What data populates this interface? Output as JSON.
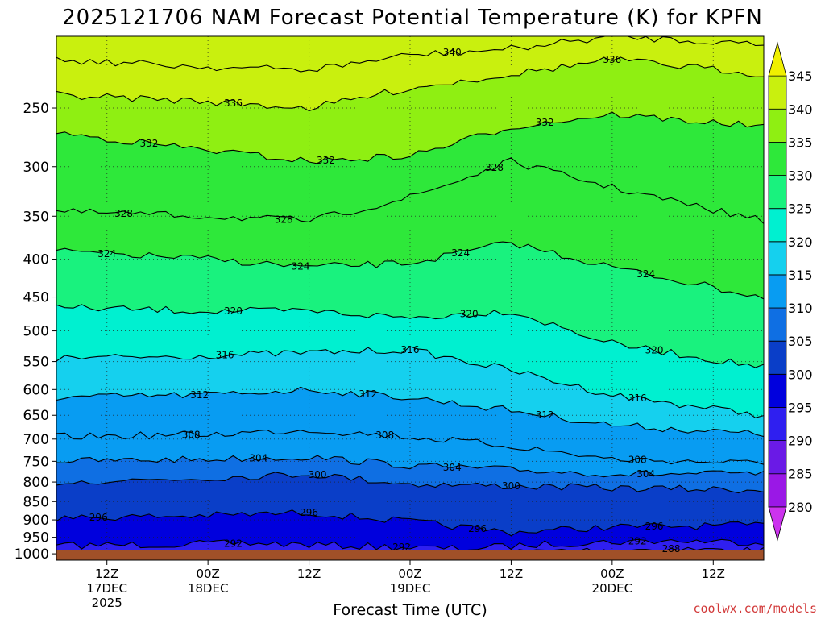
{
  "chart_data": {
    "type": "heatmap",
    "title": "2025121706 NAM Forecast Potential Temperature (K) for KPFN",
    "xlabel": "Forecast Time (UTC)",
    "ylabel": "",
    "credit": "coolwx.com/models",
    "x_ticks": [
      {
        "hour": 6,
        "line1": "12Z",
        "line2": "17DEC",
        "line3": "2025"
      },
      {
        "hour": 18,
        "line1": "00Z",
        "line2": "18DEC",
        "line3": ""
      },
      {
        "hour": 30,
        "line1": "12Z",
        "line2": "",
        "line3": ""
      },
      {
        "hour": 42,
        "line1": "00Z",
        "line2": "19DEC",
        "line3": ""
      },
      {
        "hour": 54,
        "line1": "12Z",
        "line2": "",
        "line3": ""
      },
      {
        "hour": 66,
        "line1": "00Z",
        "line2": "20DEC",
        "line3": ""
      },
      {
        "hour": 78,
        "line1": "12Z",
        "line2": "",
        "line3": ""
      }
    ],
    "x_range_hours": [
      0,
      84
    ],
    "y_axis": "pressure (hPa), log scale, reversed",
    "y_ticks": [
      250,
      300,
      350,
      400,
      450,
      500,
      550,
      600,
      650,
      700,
      750,
      800,
      850,
      900,
      950,
      1000
    ],
    "y_range": [
      200,
      1020
    ],
    "colorbar": {
      "levels": [
        280,
        285,
        290,
        295,
        300,
        305,
        310,
        315,
        320,
        325,
        330,
        335,
        340,
        345
      ],
      "colors": [
        "#cc33ee",
        "#9a18e6",
        "#6a1ae6",
        "#2f1ff0",
        "#0000dd",
        "#0a3ec8",
        "#0f6fe3",
        "#089cf2",
        "#15d0ee",
        "#00f0d0",
        "#19f27e",
        "#2ee83a",
        "#8fef12",
        "#c9f00e",
        "#f0f000"
      ]
    },
    "contours": [
      {
        "value": 288,
        "profile": [
          [
            0,
            1005
          ],
          [
            48,
            1000
          ],
          [
            60,
            990
          ],
          [
            72,
            985
          ],
          [
            84,
            990
          ]
        ],
        "labels": [
          [
            73,
            "288"
          ]
        ]
      },
      {
        "value": 292,
        "profile": [
          [
            0,
            975
          ],
          [
            24,
            968
          ],
          [
            48,
            985
          ],
          [
            60,
            968
          ],
          [
            72,
            960
          ],
          [
            84,
            965
          ]
        ],
        "labels": [
          [
            21,
            "292"
          ],
          [
            41,
            "292"
          ],
          [
            69,
            "292"
          ]
        ]
      },
      {
        "value": 296,
        "profile": [
          [
            0,
            895
          ],
          [
            18,
            888
          ],
          [
            30,
            880
          ],
          [
            42,
            905
          ],
          [
            54,
            935
          ],
          [
            66,
            920
          ],
          [
            84,
            915
          ]
        ],
        "labels": [
          [
            5,
            "296"
          ],
          [
            30,
            "296"
          ],
          [
            50,
            "296"
          ],
          [
            71,
            "296"
          ]
        ]
      },
      {
        "value": 300,
        "profile": [
          [
            0,
            800
          ],
          [
            18,
            790
          ],
          [
            30,
            780
          ],
          [
            42,
            805
          ],
          [
            54,
            810
          ],
          [
            66,
            815
          ],
          [
            84,
            820
          ]
        ],
        "labels": [
          [
            31,
            "300"
          ],
          [
            54,
            "300"
          ]
        ]
      },
      {
        "value": 304,
        "profile": [
          [
            0,
            750
          ],
          [
            18,
            745
          ],
          [
            30,
            740
          ],
          [
            42,
            760
          ],
          [
            54,
            770
          ],
          [
            66,
            780
          ],
          [
            84,
            780
          ]
        ],
        "labels": [
          [
            24,
            "304"
          ],
          [
            47,
            "304"
          ],
          [
            70,
            "304"
          ]
        ]
      },
      {
        "value": 308,
        "profile": [
          [
            0,
            695
          ],
          [
            18,
            690
          ],
          [
            30,
            680
          ],
          [
            42,
            695
          ],
          [
            54,
            715
          ],
          [
            66,
            745
          ],
          [
            84,
            755
          ]
        ],
        "labels": [
          [
            16,
            "308"
          ],
          [
            39,
            "308"
          ],
          [
            69,
            "308"
          ]
        ]
      },
      {
        "value": 312,
        "profile": [
          [
            0,
            615
          ],
          [
            18,
            610
          ],
          [
            30,
            600
          ],
          [
            42,
            615
          ],
          [
            54,
            640
          ],
          [
            66,
            670
          ],
          [
            84,
            690
          ]
        ],
        "labels": [
          [
            17,
            "312"
          ],
          [
            37,
            "312"
          ],
          [
            58,
            "312"
          ]
        ]
      },
      {
        "value": 316,
        "profile": [
          [
            0,
            545
          ],
          [
            18,
            540
          ],
          [
            30,
            535
          ],
          [
            42,
            530
          ],
          [
            54,
            565
          ],
          [
            66,
            610
          ],
          [
            84,
            650
          ]
        ],
        "labels": [
          [
            20,
            "316"
          ],
          [
            42,
            "316"
          ],
          [
            69,
            "316"
          ]
        ]
      },
      {
        "value": 320,
        "profile": [
          [
            0,
            465
          ],
          [
            18,
            470
          ],
          [
            30,
            470
          ],
          [
            42,
            480
          ],
          [
            54,
            470
          ],
          [
            66,
            520
          ],
          [
            84,
            560
          ]
        ],
        "labels": [
          [
            21,
            "320"
          ],
          [
            49,
            "320"
          ],
          [
            71,
            "320"
          ]
        ]
      },
      {
        "value": 324,
        "profile": [
          [
            0,
            390
          ],
          [
            18,
            400
          ],
          [
            30,
            410
          ],
          [
            42,
            405
          ],
          [
            54,
            380
          ],
          [
            66,
            410
          ],
          [
            84,
            450
          ]
        ],
        "labels": [
          [
            6,
            "324"
          ],
          [
            29,
            "324"
          ],
          [
            48,
            "324"
          ],
          [
            70,
            "324"
          ]
        ]
      },
      {
        "value": 328,
        "profile": [
          [
            0,
            345
          ],
          [
            18,
            350
          ],
          [
            30,
            355
          ],
          [
            42,
            330
          ],
          [
            54,
            295
          ],
          [
            66,
            320
          ],
          [
            84,
            355
          ]
        ],
        "labels": [
          [
            8,
            "328"
          ],
          [
            27,
            "328"
          ],
          [
            52,
            "328"
          ]
        ]
      },
      {
        "value": 332,
        "profile": [
          [
            0,
            270
          ],
          [
            18,
            285
          ],
          [
            30,
            295
          ],
          [
            42,
            290
          ],
          [
            54,
            265
          ],
          [
            66,
            255
          ],
          [
            84,
            265
          ]
        ],
        "labels": [
          [
            11,
            "332"
          ],
          [
            32,
            "332"
          ],
          [
            58,
            "332"
          ]
        ]
      },
      {
        "value": 336,
        "profile": [
          [
            0,
            240
          ],
          [
            18,
            245
          ],
          [
            30,
            250
          ],
          [
            42,
            235
          ],
          [
            54,
            225
          ],
          [
            66,
            215
          ],
          [
            84,
            225
          ]
        ],
        "labels": [
          [
            21,
            "336"
          ],
          [
            66,
            "336"
          ]
        ]
      },
      {
        "value": 340,
        "profile": [
          [
            0,
            215
          ],
          [
            18,
            220
          ],
          [
            30,
            222
          ],
          [
            42,
            212
          ],
          [
            54,
            208
          ],
          [
            66,
            200
          ],
          [
            84,
            205
          ]
        ],
        "labels": [
          [
            47,
            "340"
          ]
        ]
      }
    ]
  }
}
